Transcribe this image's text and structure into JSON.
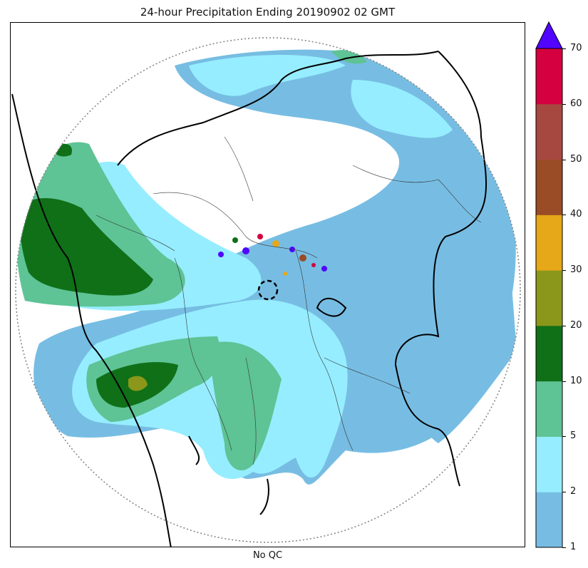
{
  "title": "24-hour Precipitation Ending 20190902 02 GMT",
  "xlabel": "No QC",
  "colorbar": {
    "ticks": [
      "1",
      "2",
      "5",
      "10",
      "20",
      "30",
      "40",
      "50",
      "60",
      "70"
    ],
    "colors": [
      "#77bde3",
      "#96edff",
      "#5ec395",
      "#0f7018",
      "#8b971a",
      "#e6a718",
      "#9a4c26",
      "#a74840",
      "#d5003f"
    ],
    "overflow_color": "#5105ff"
  },
  "map": {
    "radar_range_ring": "dotted",
    "center_marker": "dashed-circle",
    "precip_classes": {
      "c1": "#77bde3",
      "c2": "#96edff",
      "c5": "#5ec395",
      "c10": "#0f7018",
      "c20": "#8b971a",
      "c30": "#e6a718",
      "c40": "#9a4c26",
      "c60": "#d5003f",
      "c70": "#5105ff"
    }
  }
}
